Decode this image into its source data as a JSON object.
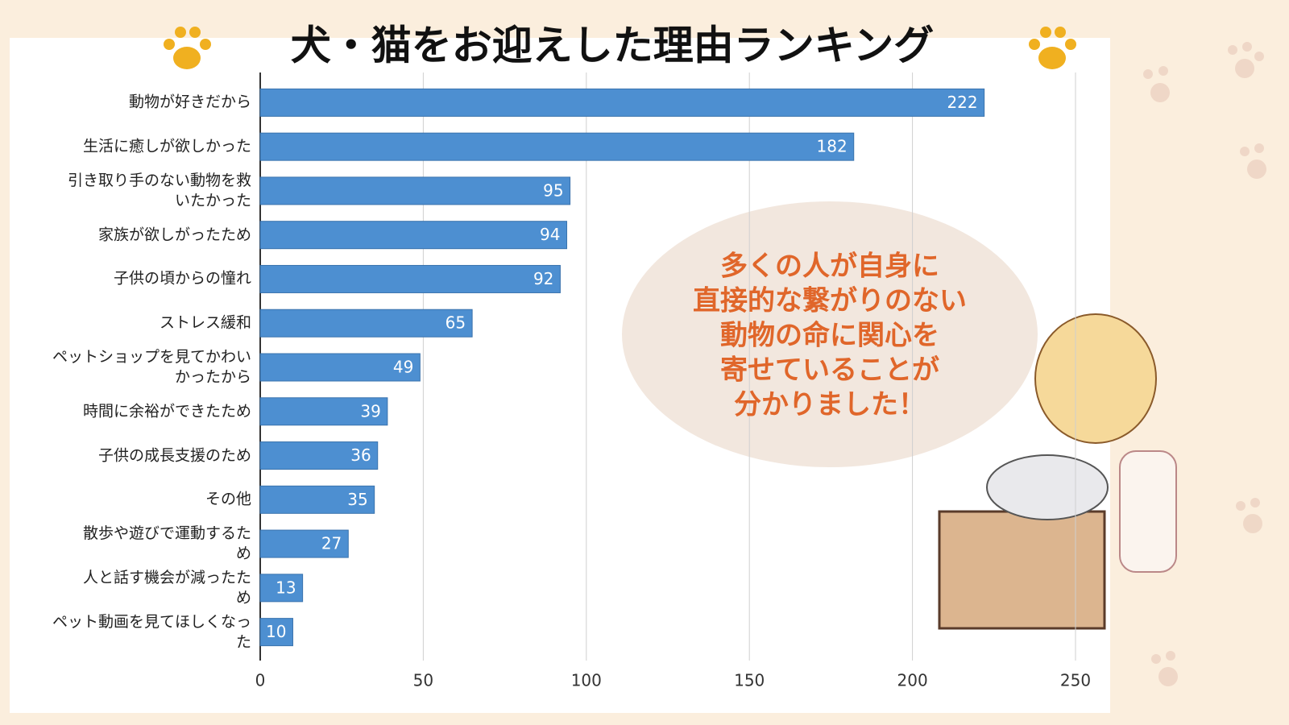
{
  "chart_data": {
    "type": "bar",
    "orientation": "horizontal",
    "title": "犬・猫をお迎えした理由ランキング",
    "categories": [
      "動物が好きだから",
      "生活に癒しが欲しかった",
      "引き取り手のない動物を救\nいたかった",
      "家族が欲しがったため",
      "子供の頃からの憧れ",
      "ストレス緩和",
      "ペットショップを見てかわい\nかったから",
      "時間に余裕ができたため",
      "子供の成長支援のため",
      "その他",
      "散歩や遊びで運動するた\nめ",
      "人と話す機会が減ったた\nめ",
      "ペット動画を見てほしくなっ\nた"
    ],
    "values": [
      222,
      182,
      95,
      94,
      92,
      65,
      49,
      39,
      36,
      35,
      27,
      13,
      10
    ],
    "color": "#4d8fd1",
    "xlim": [
      0,
      250
    ],
    "xticks": [
      0,
      50,
      100,
      150,
      200,
      250
    ],
    "grid": true,
    "annotation": [
      "多くの人が自身に",
      "直接的な繋がりのない",
      "動物の命に関心を",
      "寄せていることが",
      "分かりました！"
    ]
  }
}
